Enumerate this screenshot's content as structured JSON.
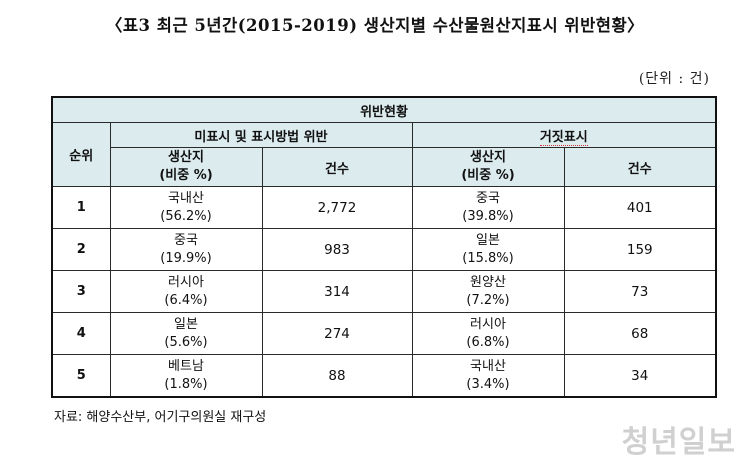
{
  "title": "〈표3 최근 5년간(2015-2019) 생산지별 수산물원산지표시 위반현황〉",
  "unit": "(단위 : 건)",
  "table": {
    "header_top": "위반현황",
    "col_rank": "순위",
    "group_unlabeled": "미표시 및 표시방법 위반",
    "group_false": "거짓표시",
    "sub_origin_line1": "생산지",
    "sub_origin_line2": "(비중 %)",
    "sub_count": "건수",
    "rows": [
      {
        "rank": "1",
        "a_origin": "국내산",
        "a_pct": "(56.2%)",
        "a_count": "2,772",
        "b_origin": "중국",
        "b_pct": "(39.8%)",
        "b_count": "401"
      },
      {
        "rank": "2",
        "a_origin": "중국",
        "a_pct": "(19.9%)",
        "a_count": "983",
        "b_origin": "일본",
        "b_pct": "(15.8%)",
        "b_count": "159"
      },
      {
        "rank": "3",
        "a_origin": "러시아",
        "a_pct": "(6.4%)",
        "a_count": "314",
        "b_origin": "원양산",
        "b_pct": "(7.2%)",
        "b_count": "73"
      },
      {
        "rank": "4",
        "a_origin": "일본",
        "a_pct": "(5.6%)",
        "a_count": "274",
        "b_origin": "러시아",
        "b_pct": "(6.8%)",
        "b_count": "68"
      },
      {
        "rank": "5",
        "a_origin": "베트남",
        "a_pct": "(1.8%)",
        "a_count": "88",
        "b_origin": "국내산",
        "b_pct": "(3.4%)",
        "b_count": "34"
      }
    ]
  },
  "source": "자료: 해양수산부, 어기구의원실 재구성",
  "watermark": "청년일보",
  "colors": {
    "header_bg": "#dcebee",
    "border": "#2a2a2a"
  }
}
